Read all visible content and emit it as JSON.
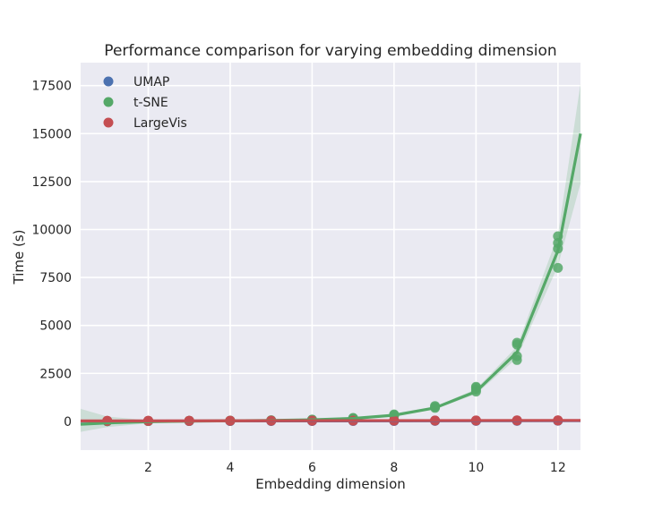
{
  "chart_data": {
    "type": "scatter",
    "title": "Performance comparison for varying embedding dimension",
    "xlabel": "Embedding dimension",
    "ylabel": "Time (s)",
    "xlim": [
      0.35,
      12.55
    ],
    "ylim": [
      -1500,
      18700
    ],
    "xticks": [
      2,
      4,
      6,
      8,
      10,
      12
    ],
    "yticks": [
      0,
      2500,
      5000,
      7500,
      10000,
      12500,
      15000,
      17500
    ],
    "grid": true,
    "legend_position": "top-left",
    "series": [
      {
        "name": "UMAP",
        "color": "#4c72b0",
        "x": [
          1,
          1,
          1,
          2,
          2,
          2,
          3,
          3,
          3,
          4,
          4,
          4,
          5,
          5,
          5,
          6,
          6,
          6,
          7,
          7,
          7,
          8,
          8,
          8,
          9,
          9,
          9,
          10,
          10,
          10,
          11,
          11,
          11,
          12,
          12,
          12
        ],
        "y": [
          12,
          13,
          12,
          14,
          15,
          14,
          16,
          17,
          16,
          18,
          19,
          18,
          20,
          21,
          20,
          22,
          23,
          22,
          24,
          25,
          24,
          26,
          27,
          26,
          28,
          29,
          28,
          30,
          31,
          30,
          32,
          33,
          32,
          34,
          35,
          34
        ],
        "fit": {
          "x": [
            0.35,
            12.55
          ],
          "y": [
            10,
            36
          ]
        }
      },
      {
        "name": "t-SNE",
        "color": "#55a868",
        "x": [
          1,
          1,
          1,
          2,
          2,
          2,
          3,
          3,
          3,
          4,
          4,
          4,
          5,
          5,
          5,
          6,
          6,
          6,
          7,
          7,
          7,
          8,
          8,
          8,
          9,
          9,
          9,
          10,
          10,
          10,
          10,
          11,
          11,
          11,
          11,
          12,
          12,
          12,
          12
        ],
        "y": [
          5,
          10,
          15,
          10,
          15,
          20,
          20,
          25,
          30,
          30,
          35,
          40,
          40,
          50,
          60,
          70,
          80,
          90,
          140,
          160,
          180,
          300,
          330,
          360,
          700,
          750,
          800,
          1550,
          1650,
          1750,
          1800,
          3200,
          3400,
          4000,
          4100,
          8000,
          9000,
          9300,
          9650
        ],
        "fit": {
          "x": [
            0.35,
            1,
            2,
            3,
            4,
            5,
            6,
            7,
            8,
            9,
            10,
            11,
            12,
            12.55
          ],
          "y": [
            -150,
            -80,
            -20,
            10,
            30,
            50,
            80,
            150,
            320,
            700,
            1550,
            3600,
            8900,
            15000
          ]
        },
        "ci_band": {
          "x": [
            0.35,
            1,
            2,
            3,
            4,
            5,
            6,
            7,
            8,
            9,
            10,
            11,
            12,
            12.55
          ],
          "lower": [
            -550,
            -300,
            -100,
            -20,
            10,
            30,
            60,
            120,
            280,
            630,
            1420,
            3300,
            8100,
            12400
          ],
          "upper": [
            650,
            250,
            60,
            40,
            50,
            70,
            100,
            180,
            360,
            770,
            1680,
            3900,
            9700,
            17600
          ]
        }
      },
      {
        "name": "LargeVis",
        "color": "#c44e52",
        "x": [
          1,
          1,
          1,
          2,
          2,
          2,
          3,
          3,
          3,
          4,
          4,
          4,
          5,
          5,
          5,
          6,
          6,
          6,
          7,
          7,
          7,
          8,
          8,
          8,
          9,
          9,
          9,
          10,
          10,
          10,
          11,
          11,
          11,
          12,
          12,
          12
        ],
        "y": [
          22,
          25,
          28,
          24,
          27,
          30,
          26,
          29,
          32,
          28,
          31,
          34,
          30,
          33,
          36,
          32,
          35,
          38,
          34,
          37,
          40,
          36,
          39,
          42,
          38,
          41,
          44,
          40,
          43,
          46,
          42,
          45,
          48,
          44,
          47,
          50
        ],
        "fit": {
          "x": [
            0.35,
            12.55
          ],
          "y": [
            22,
            48
          ]
        }
      }
    ]
  }
}
